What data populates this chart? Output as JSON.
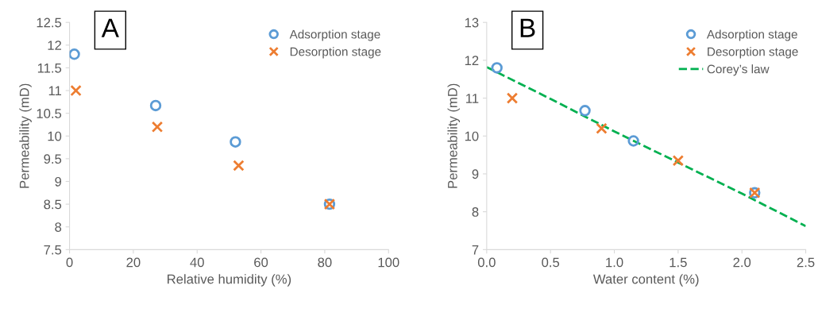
{
  "chart_data": [
    {
      "type": "scatter",
      "annotations": [
        "A"
      ],
      "xlabel": "Relative humidity (%)",
      "ylabel": "Permeability (mD)",
      "xlim": [
        0,
        100
      ],
      "xticks": [
        0,
        20,
        40,
        60,
        80,
        100
      ],
      "ylim": [
        7.5,
        12.5
      ],
      "yticks": [
        7.5,
        8,
        8.5,
        9,
        9.5,
        10,
        10.5,
        11,
        11.5,
        12,
        12.5
      ],
      "grid": false,
      "legend": "top right",
      "series": [
        {
          "name": "Adsorption stage",
          "color": "#5b9bd5",
          "marker": "circle",
          "x": [
            1.5,
            27,
            52,
            81.5
          ],
          "values": [
            11.8,
            10.67,
            9.87,
            8.5
          ]
        },
        {
          "name": "Desorption stage",
          "color": "#ed7d31",
          "marker": "cross",
          "x": [
            2,
            27.5,
            53,
            81.5
          ],
          "values": [
            11.0,
            10.2,
            9.35,
            8.5
          ]
        }
      ]
    },
    {
      "type": "scatter",
      "annotations": [
        "B"
      ],
      "xlabel": "Water content (%)",
      "ylabel": "Permeability (mD)",
      "xlim": [
        0,
        2.5
      ],
      "xticks": [
        {
          "value": 0,
          "label": "0.0"
        },
        0.5,
        {
          "value": 1,
          "label": "1.0"
        },
        1.5,
        {
          "value": 2,
          "label": "2.0"
        },
        2.5
      ],
      "ylim": [
        7,
        13
      ],
      "yticks": [
        7,
        8,
        9,
        10,
        11,
        12,
        13
      ],
      "grid": false,
      "legend": "top right",
      "series": [
        {
          "name": "Adsorption stage",
          "color": "#5b9bd5",
          "marker": "circle",
          "x": [
            0.08,
            0.77,
            1.15,
            2.1
          ],
          "values": [
            11.8,
            10.67,
            9.87,
            8.5
          ]
        },
        {
          "name": "Desorption stage",
          "color": "#ed7d31",
          "marker": "cross",
          "x": [
            0.2,
            0.9,
            1.5,
            2.1
          ],
          "values": [
            11.0,
            10.2,
            9.35,
            8.5
          ]
        },
        {
          "name": "Corey’s law",
          "type": "line",
          "color": "#00b050",
          "marker": "none",
          "line_style": "dashed",
          "x": [
            0,
            0.5,
            1.0,
            1.5,
            2.0,
            2.5
          ],
          "values": [
            11.82,
            10.98,
            10.12,
            9.3,
            8.48,
            7.62
          ]
        }
      ]
    }
  ]
}
